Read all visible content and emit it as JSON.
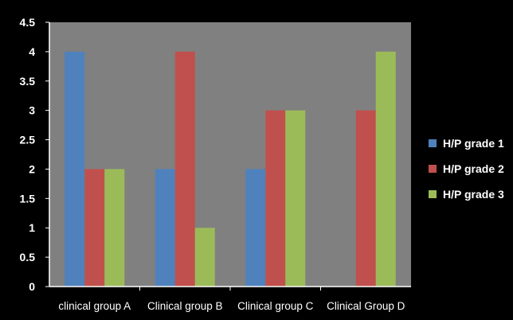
{
  "chart_data": {
    "type": "bar",
    "categories": [
      "clinical group A",
      "Clinical group B",
      "Clinical group C",
      "Clinical Group D"
    ],
    "series": [
      {
        "name": "H/P grade 1",
        "color": "#4f81bd",
        "values": [
          4,
          2,
          2,
          0
        ]
      },
      {
        "name": "H/P grade 2",
        "color": "#c0504d",
        "values": [
          2,
          4,
          3,
          3
        ]
      },
      {
        "name": "H/P grade 3",
        "color": "#9bbb59",
        "values": [
          2,
          1,
          3,
          4
        ]
      }
    ],
    "y_ticks": [
      "0",
      "0.5",
      "1",
      "1.5",
      "2",
      "2.5",
      "3",
      "3.5",
      "4",
      "4.5"
    ],
    "ylim": [
      0,
      4.5
    ],
    "grid": false,
    "legend_position": "right",
    "colors": {
      "background": "#000000",
      "plot_area": "#808080"
    }
  }
}
